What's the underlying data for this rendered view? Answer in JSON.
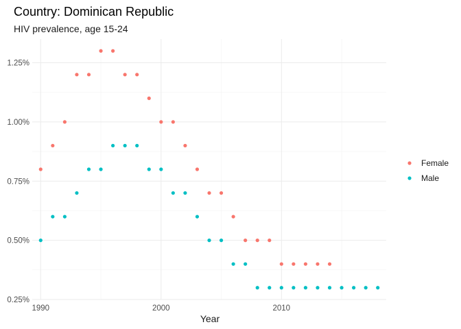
{
  "chart_data": {
    "type": "scatter",
    "title": "Country: Dominican Republic",
    "subtitle": "HIV prevalence, age 15-24",
    "xlabel": "Year",
    "ylabel": "",
    "xlim": [
      1989.3,
      2018.7
    ],
    "ylim": [
      0.25,
      1.35
    ],
    "x_ticks": [
      1990,
      2000,
      2010
    ],
    "y_ticks": [
      0.25,
      0.5,
      0.75,
      1.0,
      1.25
    ],
    "y_tick_labels": [
      "0.25%",
      "0.50%",
      "0.75%",
      "1.00%",
      "1.25%"
    ],
    "grid": true,
    "legend_position": "right",
    "series": [
      {
        "name": "Female",
        "color": "#F8766D",
        "x": [
          1990,
          1991,
          1992,
          1993,
          1994,
          1995,
          1996,
          1997,
          1998,
          1999,
          2000,
          2001,
          2002,
          2003,
          2004,
          2005,
          2006,
          2007,
          2008,
          2009,
          2010,
          2011,
          2012,
          2013,
          2014
        ],
        "y": [
          0.8,
          0.9,
          1.0,
          1.2,
          1.2,
          1.3,
          1.3,
          1.2,
          1.2,
          1.1,
          1.0,
          1.0,
          0.9,
          0.8,
          0.7,
          0.7,
          0.6,
          0.5,
          0.5,
          0.5,
          0.4,
          0.4,
          0.4,
          0.4,
          0.4
        ]
      },
      {
        "name": "Male",
        "color": "#00BFC4",
        "x": [
          1990,
          1991,
          1992,
          1993,
          1994,
          1995,
          1996,
          1997,
          1998,
          1999,
          2000,
          2001,
          2002,
          2003,
          2004,
          2005,
          2006,
          2007,
          2008,
          2009,
          2010,
          2011,
          2012,
          2013,
          2014,
          2015,
          2016,
          2017,
          2018
        ],
        "y": [
          0.5,
          0.6,
          0.6,
          0.7,
          0.8,
          0.8,
          0.9,
          0.9,
          0.9,
          0.8,
          0.8,
          0.7,
          0.7,
          0.6,
          0.5,
          0.5,
          0.4,
          0.4,
          0.3,
          0.3,
          0.3,
          0.3,
          0.3,
          0.3,
          0.3,
          0.3,
          0.3,
          0.3,
          0.3
        ]
      }
    ]
  }
}
